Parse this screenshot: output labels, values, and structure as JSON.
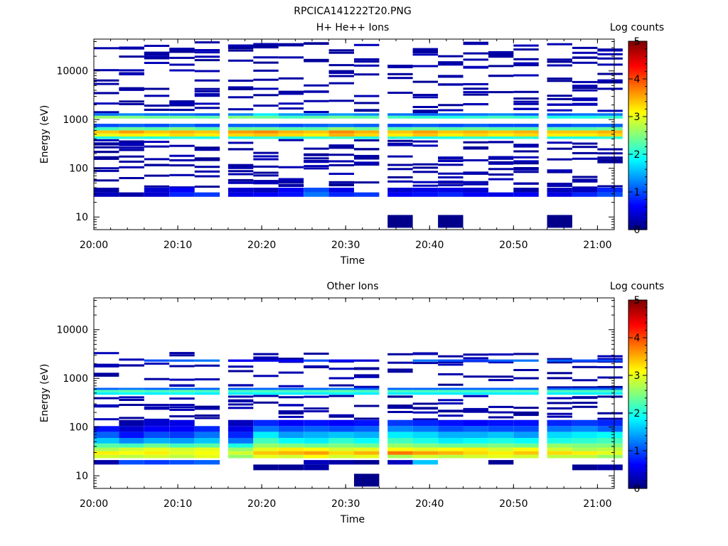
{
  "figure_title": "RPCICA141222T20.PNG",
  "chart_data": [
    {
      "type": "heatmap",
      "title": "H+ He++ Ions",
      "xlabel": "Time",
      "ylabel": "Energy (eV)",
      "x_range": [
        "20:00",
        "21:02"
      ],
      "y_range_eV": [
        5.5,
        45000
      ],
      "y_scale": "log",
      "x_tick_labels": [
        "20:00",
        "20:10",
        "20:20",
        "20:30",
        "20:40",
        "20:50",
        "21:00"
      ],
      "y_tick_labels": [
        "10",
        "100",
        "1000",
        "10000"
      ],
      "colorbar": {
        "label": "Log counts",
        "range": [
          0,
          5
        ],
        "tick_labels": [
          "0",
          "1",
          "2",
          "3",
          "4",
          "5"
        ],
        "colormap": "jet"
      },
      "time_bins": [
        "20:00",
        "20:03",
        "20:06",
        "20:09",
        "20:12",
        "20:16",
        "20:19",
        "20:22",
        "20:25",
        "20:28",
        "20:31",
        "20:35",
        "20:38",
        "20:41",
        "20:44",
        "20:47",
        "20:50",
        "20:54",
        "20:57",
        "21:00"
      ],
      "description_note": "",
      "bands": [
        {
          "e_lo": 400,
          "e_hi": 450,
          "cols": "all",
          "v": [
            2.0,
            2.1,
            2.0,
            2.1,
            2.0,
            2.0,
            2.1,
            2.0,
            2.1,
            2.2,
            2.0,
            2.1,
            2.0,
            2.0,
            2.1,
            2.0,
            2.1,
            2.0,
            2.0,
            2.1
          ]
        },
        {
          "e_lo": 450,
          "e_hi": 520,
          "cols": "all",
          "v": [
            3.0,
            3.2,
            3.1,
            3.3,
            3.2,
            3.3,
            3.4,
            3.3,
            3.2,
            3.5,
            3.3,
            3.2,
            3.4,
            3.2,
            3.3,
            3.2,
            3.3,
            3.2,
            3.2,
            3.3
          ]
        },
        {
          "e_lo": 520,
          "e_hi": 600,
          "cols": "all",
          "v": [
            3.4,
            3.6,
            3.4,
            3.5,
            3.4,
            3.6,
            3.7,
            3.5,
            3.4,
            3.7,
            3.5,
            3.4,
            3.6,
            3.4,
            3.5,
            3.4,
            3.5,
            3.4,
            3.4,
            3.5
          ]
        },
        {
          "e_lo": 600,
          "e_hi": 700,
          "cols": "all",
          "v": [
            2.2,
            2.4,
            2.3,
            2.5,
            2.3,
            2.4,
            2.4,
            2.3,
            2.3,
            2.6,
            2.4,
            2.3,
            2.4,
            2.3,
            2.4,
            2.3,
            2.3,
            2.3,
            2.3,
            2.4
          ]
        },
        {
          "e_lo": 700,
          "e_hi": 820,
          "cols": "all",
          "v": [
            1.0,
            1.1,
            1.0,
            1.2,
            1.0,
            1.1,
            1.1,
            1.0,
            1.1,
            1.2,
            1.1,
            1.0,
            1.1,
            1.0,
            1.1,
            1.0,
            1.0,
            1.0,
            1.1,
            1.1
          ]
        },
        {
          "e_lo": 1050,
          "e_hi": 1200,
          "cols": "all",
          "v": [
            2.6,
            2.5,
            2.4,
            2.4,
            2.3,
            2.5,
            2.4,
            2.2,
            2.3,
            2.4,
            2.3,
            2.2,
            2.1,
            2.0,
            2.1,
            2.2,
            2.1,
            2.0,
            2.0,
            2.1
          ]
        },
        {
          "e_lo": 1200,
          "e_hi": 1350,
          "cols": "all",
          "v": [
            1.2,
            1.3,
            1.2,
            1.2,
            1.1,
            1.3,
            1.8,
            1.4,
            1.3,
            1.4,
            1.3,
            1.2,
            1.1,
            1.2,
            1.2,
            1.3,
            1.1,
            1.1,
            1.2,
            1.2
          ]
        },
        {
          "e_lo": 26,
          "e_hi": 32,
          "cols": "all",
          "v": [
            0.3,
            0.2,
            0.4,
            0.8,
            0.9,
            0.5,
            0.6,
            0.7,
            1.2,
            0.8,
            0.9,
            0.6,
            0.7,
            0.8,
            0.6,
            0.5,
            0.6,
            0.5,
            0.8,
            1.0
          ]
        },
        {
          "e_lo": 32,
          "e_hi": 40,
          "cols": "all",
          "v": [
            0.2,
            0,
            0.4,
            0.6,
            0,
            0.4,
            0.3,
            0.6,
            1.0,
            0.5,
            0,
            0.4,
            0.5,
            0.5,
            0.4,
            0,
            0.2,
            0.3,
            0.3,
            0.8
          ]
        },
        {
          "e_lo": 6,
          "e_hi": 11,
          "cols": [
            11,
            13,
            17
          ],
          "v": [
            0.05,
            0.05,
            0.05
          ]
        }
      ],
      "sparse_rows_note": ""
    },
    {
      "type": "heatmap",
      "title": "Other Ions",
      "xlabel": "Time",
      "ylabel": "Energy (eV)",
      "x_range": [
        "20:00",
        "21:02"
      ],
      "y_range_eV": [
        5.5,
        45000
      ],
      "y_scale": "log",
      "x_tick_labels": [
        "20:00",
        "20:10",
        "20:20",
        "20:30",
        "20:40",
        "20:50",
        "21:00"
      ],
      "y_tick_labels": [
        "10",
        "100",
        "1000",
        "10000"
      ],
      "colorbar": {
        "label": "Log counts",
        "range": [
          0,
          5
        ],
        "tick_labels": [
          "0",
          "1",
          "2",
          "3",
          "4",
          "5"
        ],
        "colormap": "jet"
      },
      "time_bins": [
        "20:00",
        "20:03",
        "20:06",
        "20:09",
        "20:12",
        "20:16",
        "20:19",
        "20:22",
        "20:25",
        "20:28",
        "20:31",
        "20:35",
        "20:38",
        "20:41",
        "20:44",
        "20:47",
        "20:50",
        "20:54",
        "20:57",
        "21:00"
      ],
      "bands": [
        {
          "e_lo": 460,
          "e_hi": 520,
          "cols": "all",
          "v": [
            1.8,
            1.9,
            1.8,
            1.9,
            1.8,
            1.8,
            1.9,
            1.8,
            1.8,
            1.9,
            1.8,
            1.8,
            1.8,
            1.8,
            1.8,
            1.8,
            1.8,
            1.8,
            1.8,
            1.8
          ]
        },
        {
          "e_lo": 520,
          "e_hi": 580,
          "cols": "all",
          "v": [
            2.2,
            2.3,
            2.2,
            2.3,
            2.2,
            2.2,
            2.2,
            2.2,
            2.2,
            2.3,
            2.2,
            2.2,
            2.2,
            2.2,
            2.2,
            2.2,
            2.2,
            2.2,
            2.2,
            2.2
          ]
        },
        {
          "e_lo": 580,
          "e_hi": 640,
          "cols": "all",
          "v": [
            1.1,
            1.2,
            1.1,
            1.2,
            1.1,
            1.1,
            1.1,
            1.1,
            1.1,
            1.2,
            1.1,
            1.1,
            1.1,
            1.1,
            1.1,
            1.1,
            1.1,
            1.1,
            1.1,
            1.1
          ]
        },
        {
          "e_lo": 2200,
          "e_hi": 2450,
          "cols": "all",
          "v": [
            0,
            0,
            1.0,
            1.1,
            1.2,
            0.6,
            0.5,
            0.6,
            1.0,
            0.6,
            0.4,
            0,
            1.2,
            1.0,
            0.9,
            1.1,
            1.2,
            1.1,
            1.0,
            1.0
          ]
        },
        {
          "e_lo": 23,
          "e_hi": 27,
          "cols": "all",
          "v": [
            2.9,
            2.8,
            2.9,
            2.8,
            3.0,
            2.6,
            3.0,
            2.9,
            3.1,
            2.9,
            3.0,
            2.7,
            2.9,
            2.8,
            2.9,
            3.0,
            2.9,
            2.8,
            2.8,
            2.6
          ]
        },
        {
          "e_lo": 27,
          "e_hi": 32,
          "cols": "all",
          "v": [
            3.2,
            3.1,
            3.2,
            3.0,
            3.1,
            2.9,
            3.4,
            3.5,
            3.6,
            3.3,
            3.5,
            3.8,
            3.6,
            3.5,
            3.3,
            3.2,
            3.4,
            3.3,
            3.2,
            3.0
          ]
        },
        {
          "e_lo": 32,
          "e_hi": 38,
          "cols": "all",
          "v": [
            2.7,
            2.9,
            3.0,
            2.9,
            3.0,
            2.6,
            3.0,
            3.2,
            3.1,
            2.9,
            3.0,
            3.1,
            3.0,
            3.1,
            3.2,
            2.9,
            3.1,
            2.9,
            2.7,
            2.8
          ]
        },
        {
          "e_lo": 38,
          "e_hi": 46,
          "cols": "all",
          "v": [
            2.3,
            2.2,
            2.4,
            2.2,
            2.3,
            2.0,
            2.6,
            2.5,
            2.4,
            2.5,
            2.4,
            2.6,
            2.5,
            2.4,
            2.4,
            2.5,
            2.4,
            2.6,
            2.5,
            2.5
          ]
        },
        {
          "e_lo": 46,
          "e_hi": 60,
          "cols": "all",
          "v": [
            1.6,
            1.3,
            1.5,
            1.4,
            1.6,
            1.2,
            2.2,
            1.9,
            1.8,
            2.1,
            1.9,
            2.2,
            2.0,
            1.8,
            1.9,
            2.0,
            1.9,
            2.0,
            2.1,
            2.2
          ]
        },
        {
          "e_lo": 60,
          "e_hi": 80,
          "cols": "all",
          "v": [
            1.1,
            0.7,
            1.0,
            0.9,
            1.2,
            0.8,
            1.8,
            1.4,
            1.5,
            1.6,
            1.5,
            1.8,
            1.7,
            1.5,
            1.5,
            1.6,
            1.4,
            1.7,
            1.8,
            1.9
          ]
        },
        {
          "e_lo": 80,
          "e_hi": 105,
          "cols": "all",
          "v": [
            0.7,
            0.4,
            0.6,
            0.6,
            0.8,
            0.5,
            1.2,
            1.0,
            1.1,
            1.0,
            1.1,
            1.3,
            1.2,
            1.0,
            1.1,
            1.0,
            1.0,
            1.2,
            1.3,
            1.1
          ]
        },
        {
          "e_lo": 105,
          "e_hi": 140,
          "cols": "all",
          "v": [
            0,
            0.2,
            0.4,
            0.5,
            0,
            0.3,
            0.8,
            0.6,
            0.7,
            0.6,
            0.7,
            0.9,
            0.8,
            0.7,
            0.6,
            0.7,
            0.7,
            0.8,
            0.9,
            0.8
          ]
        },
        {
          "e_lo": 17,
          "e_hi": 21,
          "cols": "all",
          "v": [
            0.2,
            1.0,
            0.9,
            1.0,
            1.1,
            0,
            0,
            0,
            0.3,
            0.2,
            0.1,
            0.3,
            1.6,
            0,
            0,
            0.1,
            0,
            0,
            0,
            0
          ]
        },
        {
          "e_lo": 13,
          "e_hi": 17,
          "cols": [
            6,
            7,
            8,
            18,
            19
          ],
          "v": [
            0.1,
            0.1,
            0.2,
            0.1,
            0.2
          ]
        },
        {
          "e_lo": 6,
          "e_hi": 11,
          "cols": [
            10
          ],
          "v": [
            0.05
          ]
        }
      ]
    }
  ]
}
